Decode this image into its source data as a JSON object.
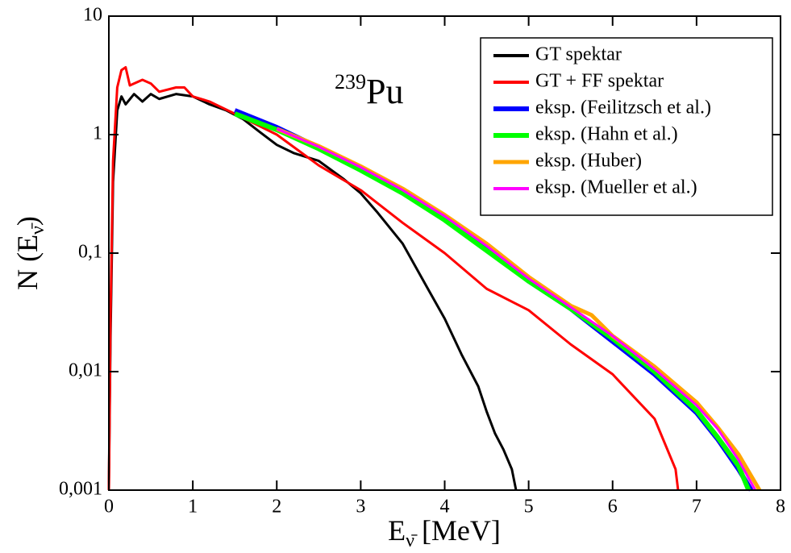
{
  "chart_data": {
    "type": "line",
    "annotation": {
      "superscript": "239",
      "text": "Pu"
    },
    "x_label": {
      "text": "E",
      "sub": "ν̄",
      "end": " [MeV]"
    },
    "y_label": {
      "text": "N (E",
      "sub": "ν̄",
      "end": ")"
    },
    "xlim": [
      0,
      8
    ],
    "xticks": [
      0,
      1,
      2,
      3,
      4,
      5,
      6,
      7,
      8
    ],
    "ylim": [
      0.001,
      10
    ],
    "log_y": true,
    "yticks": [
      {
        "value": 0.001,
        "label": "0,001"
      },
      {
        "value": 0.01,
        "label": "0,01"
      },
      {
        "value": 0.1,
        "label": "0,1"
      },
      1,
      10
    ],
    "legend": "upper right",
    "series": [
      {
        "name": "GT spektar",
        "color": "#000000",
        "width": 3,
        "x": [
          0,
          0.02,
          0.05,
          0.1,
          0.15,
          0.2,
          0.3,
          0.4,
          0.5,
          0.6,
          0.8,
          1.0,
          1.2,
          1.4,
          1.6,
          1.8,
          2.0,
          2.2,
          2.5,
          2.8,
          3.0,
          3.2,
          3.5,
          3.8,
          4.0,
          4.2,
          4.4,
          4.5,
          4.6,
          4.7,
          4.8,
          4.85
        ],
        "values": [
          0.001,
          0.02,
          0.4,
          1.6,
          2.1,
          1.8,
          2.2,
          1.9,
          2.2,
          2.0,
          2.2,
          2.1,
          1.8,
          1.6,
          1.35,
          1.05,
          0.82,
          0.7,
          0.6,
          0.42,
          0.32,
          0.22,
          0.12,
          0.05,
          0.028,
          0.014,
          0.0075,
          0.0046,
          0.003,
          0.0022,
          0.0015,
          0.001
        ]
      },
      {
        "name": "GT + FF spektar",
        "color": "#ff0000",
        "width": 3,
        "x": [
          0,
          0.02,
          0.05,
          0.1,
          0.15,
          0.2,
          0.25,
          0.3,
          0.4,
          0.5,
          0.6,
          0.8,
          0.9,
          1.0,
          1.2,
          1.5,
          2.0,
          2.5,
          3.0,
          3.5,
          4.0,
          4.5,
          5.0,
          5.5,
          6.0,
          6.5,
          6.75,
          6.78
        ],
        "values": [
          0.001,
          0.03,
          0.6,
          2.5,
          3.5,
          3.7,
          2.6,
          2.7,
          2.9,
          2.7,
          2.3,
          2.5,
          2.5,
          2.1,
          1.9,
          1.5,
          1.0,
          0.55,
          0.34,
          0.18,
          0.1,
          0.05,
          0.033,
          0.017,
          0.0095,
          0.004,
          0.0015,
          0.001
        ]
      },
      {
        "name": "eksp. (Feilitzsch et al.)",
        "color": "#0000ff",
        "width": 6,
        "x": [
          1.5,
          2,
          2.5,
          3,
          3.5,
          4,
          4.5,
          5,
          5.5,
          6,
          6.5,
          7,
          7.25,
          7.5,
          7.65
        ],
        "values": [
          1.6,
          1.15,
          0.78,
          0.52,
          0.33,
          0.2,
          0.11,
          0.058,
          0.034,
          0.018,
          0.0095,
          0.0045,
          0.0027,
          0.0015,
          0.001
        ]
      },
      {
        "name": "eksp. (Hahn et al.)",
        "color": "#00ff00",
        "width": 6,
        "x": [
          1.5,
          2,
          2.5,
          3,
          3.5,
          4,
          4.5,
          5,
          5.5,
          6,
          6.5,
          7,
          7.25,
          7.5,
          7.62
        ],
        "values": [
          1.5,
          1.1,
          0.76,
          0.5,
          0.32,
          0.19,
          0.105,
          0.058,
          0.034,
          0.019,
          0.01,
          0.0047,
          0.0028,
          0.0016,
          0.001
        ]
      },
      {
        "name": "eksp. (Huber)",
        "color": "#ffa500",
        "width": 5,
        "x": [
          2,
          2.5,
          3,
          3.5,
          4,
          4.5,
          5,
          5.5,
          5.75,
          6,
          6.5,
          7,
          7.25,
          7.5,
          7.75
        ],
        "values": [
          1.12,
          0.8,
          0.54,
          0.35,
          0.21,
          0.12,
          0.063,
          0.036,
          0.03,
          0.02,
          0.011,
          0.0055,
          0.0034,
          0.002,
          0.001
        ]
      },
      {
        "name": "eksp. (Mueller et al.)",
        "color": "#ff00ff",
        "width": 3,
        "x": [
          2,
          2.5,
          3,
          3.5,
          4,
          4.5,
          5,
          5.5,
          6,
          6.5,
          7,
          7.25,
          7.5,
          7.7
        ],
        "values": [
          1.12,
          0.79,
          0.53,
          0.34,
          0.205,
          0.115,
          0.061,
          0.035,
          0.02,
          0.0105,
          0.0052,
          0.0033,
          0.0018,
          0.001
        ]
      }
    ]
  }
}
